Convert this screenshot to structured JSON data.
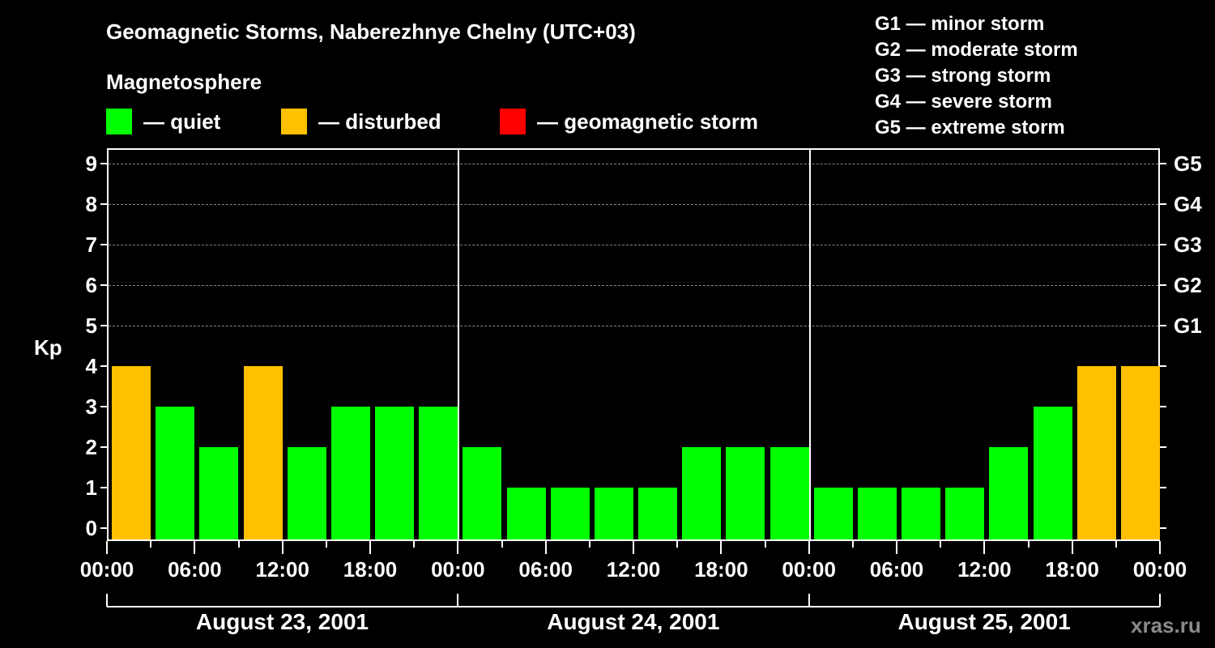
{
  "title": "Geomagnetic Storms, Naberezhnye Chelny (UTC+03)",
  "subtitle": "Magnetosphere",
  "legend": [
    {
      "label": "— quiet",
      "color": "#00ff00"
    },
    {
      "label": "— disturbed",
      "color": "#ffc000"
    },
    {
      "label": "— geomagnetic storm",
      "color": "#ff0000"
    }
  ],
  "g_legend": [
    "G1 — minor storm",
    "G2 — moderate storm",
    "G3 — strong storm",
    "G4 — severe storm",
    "G5 — extreme storm"
  ],
  "credit": "xras.ru",
  "chart_data": {
    "type": "bar",
    "title": "Geomagnetic Storms, Naberezhnye Chelny (UTC+03)",
    "xlabel": "",
    "ylabel": "Kp",
    "ylim": [
      0,
      9
    ],
    "yticks": [
      0,
      1,
      2,
      3,
      4,
      5,
      6,
      7,
      8,
      9
    ],
    "right_axis_labels": [
      {
        "kp": 5,
        "label": "G1"
      },
      {
        "kp": 6,
        "label": "G2"
      },
      {
        "kp": 7,
        "label": "G3"
      },
      {
        "kp": 8,
        "label": "G4"
      },
      {
        "kp": 9,
        "label": "G5"
      }
    ],
    "grid": "dashed horizontal at Kp 5–9",
    "x_tick_labels": [
      "00:00",
      "06:00",
      "12:00",
      "18:00",
      "00:00",
      "06:00",
      "12:00",
      "18:00",
      "00:00",
      "06:00",
      "12:00",
      "18:00",
      "00:00"
    ],
    "days": [
      "August 23, 2001",
      "August 24, 2001",
      "August 25, 2001"
    ],
    "interval_hours": 3,
    "categories": [
      "Aug 23 00-03",
      "Aug 23 03-06",
      "Aug 23 06-09",
      "Aug 23 09-12",
      "Aug 23 12-15",
      "Aug 23 15-18",
      "Aug 23 18-21",
      "Aug 23 21-24",
      "Aug 24 00-03",
      "Aug 24 03-06",
      "Aug 24 06-09",
      "Aug 24 09-12",
      "Aug 24 12-15",
      "Aug 24 15-18",
      "Aug 24 18-21",
      "Aug 24 21-24",
      "Aug 25 00-03",
      "Aug 25 03-06",
      "Aug 25 06-09",
      "Aug 25 09-12",
      "Aug 25 12-15",
      "Aug 25 15-18",
      "Aug 25 18-21",
      "Aug 25 21-24"
    ],
    "values": [
      4,
      3,
      2,
      4,
      2,
      3,
      3,
      3,
      2,
      1,
      1,
      1,
      1,
      2,
      2,
      2,
      1,
      1,
      1,
      1,
      2,
      3,
      4,
      4
    ],
    "colors_rule": {
      "quiet": "Kp<4 → #00ff00",
      "disturbed": "Kp=4 → #ffc000",
      "storm": "Kp>=5 → #ff0000"
    },
    "legend": [
      "quiet",
      "disturbed",
      "geomagnetic storm"
    ]
  }
}
